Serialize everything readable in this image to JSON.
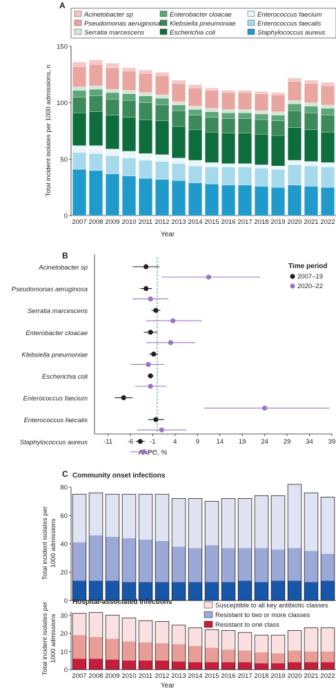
{
  "colors": {
    "acinetobacter": "#f3c8c8",
    "serratia": "#d7e5d6",
    "enterobacter": "#5fa57a",
    "klebsiella": "#3c8a5b",
    "escherichia": "#0e6d3d",
    "efaecium": "#e9f6fb",
    "efaecalis": "#a7d9ec",
    "saureus": "#1f9acb",
    "pseudomonas": "#e9a6a0",
    "black": "#231f20",
    "purple": "#9b72c6",
    "dashed": "#3a9a9a",
    "susceptible": "#dfe3f2",
    "twoplus": "#9ca8d6",
    "oneclass_comm": "#1756a8",
    "susceptible_hosp": "#fae0e0",
    "twoplus_hosp": "#e89e96",
    "oneclass_hosp": "#c41e3a"
  },
  "chart_data": [
    {
      "panel": "A",
      "type": "bar",
      "stacked": true,
      "ylabel": "Total incident isolates per 1000 admissions, n",
      "xlabel": "Year",
      "ylim": [
        0,
        150
      ],
      "yticks": [
        0,
        50,
        100,
        150
      ],
      "categories": [
        "2007",
        "2008",
        "2009",
        "2010",
        "2011",
        "2012",
        "2013",
        "2014",
        "2015",
        "2016",
        "2017",
        "2018",
        "2019",
        "2020",
        "2021",
        "2022"
      ],
      "legend": [
        {
          "name": "Acinetobacter sp",
          "key": "acinetobacter"
        },
        {
          "name": "Enterobacter cloacae",
          "key": "enterobacter"
        },
        {
          "name": "Enterococcus faecium",
          "key": "efaecium"
        },
        {
          "name": "Pseudomonas aeruginosa",
          "key": "pseudomonas"
        },
        {
          "name": "Klebsiella pneumoniae",
          "key": "klebsiella"
        },
        {
          "name": "Enterococcus faecalis",
          "key": "efaecalis"
        },
        {
          "name": "Serratia marcescens",
          "key": "serratia"
        },
        {
          "name": "Escherichia coli",
          "key": "escherichia"
        },
        {
          "name": "Staphylococcus aureus",
          "key": "saureus"
        }
      ],
      "series": [
        {
          "name": "Staphylococcus aureus",
          "key": "saureus",
          "values": [
            41,
            40,
            37,
            35,
            33,
            32,
            31,
            29,
            28,
            27,
            27,
            26,
            25,
            27,
            26,
            25
          ]
        },
        {
          "name": "Enterococcus faecalis",
          "key": "efaecalis",
          "values": [
            15,
            15,
            16,
            16,
            16,
            16,
            15,
            15,
            15,
            16,
            16,
            16,
            16,
            18,
            18,
            18
          ]
        },
        {
          "name": "Enterococcus faecium",
          "key": "efaecium",
          "values": [
            6,
            7,
            6,
            6,
            6,
            6,
            5,
            5,
            4,
            3,
            3,
            3,
            3,
            4,
            4,
            4
          ]
        },
        {
          "name": "Escherichia coli",
          "key": "escherichia",
          "values": [
            29,
            30,
            30,
            30,
            30,
            30,
            28,
            27,
            27,
            27,
            27,
            27,
            27,
            29,
            28,
            27
          ]
        },
        {
          "name": "Klebsiella pneumoniae",
          "key": "klebsiella",
          "values": [
            14,
            14,
            14,
            15,
            15,
            14,
            14,
            13,
            13,
            13,
            13,
            13,
            13,
            15,
            15,
            15
          ]
        },
        {
          "name": "Enterobacter cloacae",
          "key": "enterobacter",
          "values": [
            6,
            6,
            6,
            6,
            6,
            6,
            5,
            5,
            5,
            5,
            5,
            5,
            5,
            6,
            6,
            6
          ]
        },
        {
          "name": "Serratia marcescens",
          "key": "serratia",
          "values": [
            3,
            3,
            3,
            3,
            3,
            3,
            3,
            3,
            3,
            3,
            3,
            3,
            3,
            3,
            3,
            3
          ]
        },
        {
          "name": "Pseudomonas aeruginosa",
          "key": "pseudomonas",
          "values": [
            18,
            19,
            19,
            17,
            17,
            17,
            16,
            16,
            16,
            15,
            15,
            15,
            15,
            17,
            17,
            17
          ]
        },
        {
          "name": "Acinetobacter sp",
          "key": "acinetobacter",
          "values": [
            4,
            4,
            4,
            3,
            3,
            3,
            3,
            3,
            2,
            2,
            2,
            2,
            2,
            3,
            3,
            3
          ]
        }
      ]
    },
    {
      "panel": "B",
      "type": "scatter",
      "xlabel": "AAPC, %",
      "xlim": [
        -14,
        39
      ],
      "xticks": [
        -11,
        -6,
        -1,
        4,
        9,
        14,
        19,
        24,
        29,
        34,
        39
      ],
      "reference_line": 0,
      "legend_title": "Time period",
      "legend": [
        {
          "name": "2007–19",
          "key": "black"
        },
        {
          "name": "2020–22",
          "key": "purple"
        }
      ],
      "categories": [
        "Acinetobacter sp",
        "Pseudomonas aeruginosa",
        "Serratia marcescens",
        "Enterobacter cloacae",
        "Klebsiella pneumoniae",
        "Escherichia coli",
        "Enterococcus faecium",
        "Enterococcus faecalis",
        "Staphylococcus aureus"
      ],
      "series": [
        {
          "name": "2007–19",
          "key": "black",
          "points": [
            {
              "est": -2.5,
              "lo": -5.5,
              "hi": 0.5
            },
            {
              "est": -2.5,
              "lo": -3.8,
              "hi": -1.2
            },
            {
              "est": -0.3,
              "lo": -1.3,
              "hi": 0.7
            },
            {
              "est": -1.5,
              "lo": -3.0,
              "hi": 0.0
            },
            {
              "est": -0.8,
              "lo": -1.8,
              "hi": 0.2
            },
            {
              "est": -1.5,
              "lo": -2.2,
              "hi": -0.8
            },
            {
              "est": -7.5,
              "lo": -9.5,
              "hi": -5.5
            },
            {
              "est": -0.3,
              "lo": -2.0,
              "hi": 1.5
            },
            {
              "est": -3.8,
              "lo": -4.8,
              "hi": -2.8
            }
          ]
        },
        {
          "name": "2020–22",
          "key": "purple",
          "points": [
            {
              "est": 11.5,
              "lo": 1.0,
              "hi": 23.0
            },
            {
              "est": -1.5,
              "lo": -5.5,
              "hi": 2.5
            },
            {
              "est": 3.5,
              "lo": -2.5,
              "hi": 10.0
            },
            {
              "est": 3.0,
              "lo": -2.5,
              "hi": 8.5
            },
            {
              "est": -2.0,
              "lo": -6.0,
              "hi": 1.5
            },
            {
              "est": -1.5,
              "lo": -5.0,
              "hi": 2.0
            },
            {
              "est": 24.0,
              "lo": 10.5,
              "hi": 38.5
            },
            {
              "est": 1.0,
              "lo": -4.5,
              "hi": 6.5
            },
            {
              "est": -3.0,
              "lo": -6.0,
              "hi": 0.0
            }
          ]
        }
      ]
    },
    {
      "panel": "C-community",
      "type": "bar",
      "stacked": true,
      "title": "Community onset infections",
      "ylabel": "Total incident isolates per 1000 admissions",
      "ylim": [
        0,
        80
      ],
      "yticks": [
        0,
        20,
        40,
        60,
        80
      ],
      "categories": [
        "2007",
        "2008",
        "2009",
        "2010",
        "2011",
        "2012",
        "2013",
        "2014",
        "2015",
        "2016",
        "2017",
        "2018",
        "2019",
        "2020",
        "2021",
        "2022"
      ],
      "series": [
        {
          "name": "Resistant to one class",
          "key": "oneclass_comm",
          "values": [
            14,
            14,
            14,
            13,
            13,
            13,
            13,
            13,
            13,
            13,
            14,
            13,
            14,
            14,
            13,
            14
          ]
        },
        {
          "name": "Resistant to two or more classes",
          "key": "twoplus",
          "values": [
            27,
            32,
            31,
            31,
            30,
            29,
            25,
            24,
            26,
            24,
            23,
            24,
            22,
            23,
            22,
            19
          ]
        },
        {
          "name": "Susceptible to all key antibiotic classes",
          "key": "susceptible",
          "values": [
            34,
            30,
            30,
            31,
            32,
            33,
            34,
            35,
            31,
            35,
            35,
            37,
            38,
            45,
            41,
            40
          ]
        }
      ]
    },
    {
      "panel": "C-hospital",
      "type": "bar",
      "stacked": true,
      "title": "Hospital-associated infections",
      "ylabel": "Total incident isolates per 1000 admissions",
      "xlabel": "Year",
      "ylim": [
        0,
        32
      ],
      "yticks": [
        0,
        10,
        20,
        30
      ],
      "categories": [
        "2007",
        "2008",
        "2009",
        "2010",
        "2011",
        "2012",
        "2013",
        "2014",
        "2015",
        "2016",
        "2017",
        "2018",
        "2019",
        "2020",
        "2021",
        "2022"
      ],
      "legend": [
        {
          "name": "Susceptible to all key antibiotic classes",
          "key": "susceptible_hosp"
        },
        {
          "name": "Resistant to two or more classes",
          "key": "twoplus_hosp"
        },
        {
          "name": "Resistant to one class",
          "key": "oneclass_hosp"
        }
      ],
      "series": [
        {
          "name": "Resistant to one class",
          "key": "oneclass_hosp",
          "values": [
            6,
            6,
            5.5,
            5,
            5,
            5,
            4.5,
            4,
            4,
            4,
            4,
            3.5,
            3.5,
            4,
            4,
            4
          ]
        },
        {
          "name": "Resistant to two or more classes",
          "key": "twoplus_hosp",
          "values": [
            13,
            12,
            11.5,
            10.5,
            10,
            9.5,
            9.5,
            9,
            8,
            7,
            6.5,
            6,
            5.5,
            6.5,
            6,
            6
          ]
        },
        {
          "name": "Susceptible to all key antibiotic classes",
          "key": "susceptible_hosp",
          "values": [
            12,
            13.5,
            13,
            13,
            12,
            12,
            10.5,
            10,
            10,
            10.5,
            10,
            9.5,
            10,
            11,
            13,
            13
          ]
        }
      ]
    }
  ],
  "panel_labels": {
    "a": "A",
    "b": "B",
    "c": "C"
  }
}
